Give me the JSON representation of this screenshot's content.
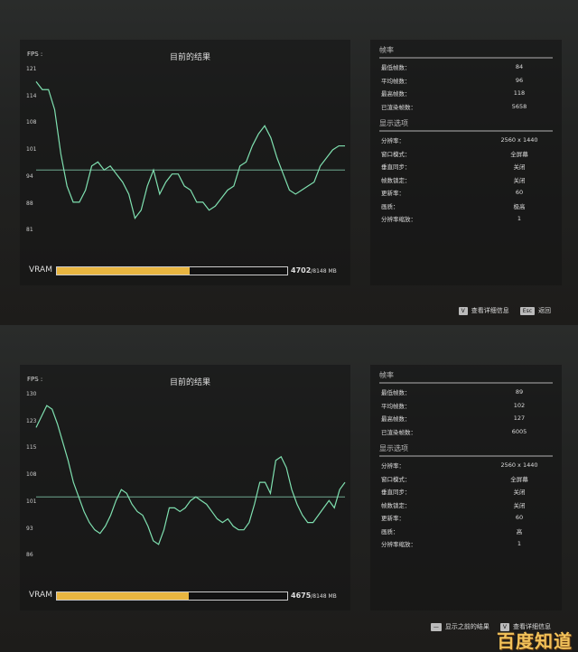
{
  "panels": [
    {
      "fps_label": "FPS :",
      "title": "目前的结果",
      "yticks": [
        "121",
        "114",
        "108",
        "101",
        "94",
        "88",
        "81"
      ],
      "ylim": [
        81,
        121
      ],
      "average": 96,
      "series": [
        118,
        116,
        116,
        111,
        100,
        92,
        88,
        88,
        91,
        97,
        98,
        96,
        97,
        95,
        93,
        90,
        84,
        86,
        92,
        96,
        90,
        93,
        95,
        95,
        92,
        91,
        88,
        88,
        86,
        87,
        89,
        91,
        92,
        97,
        98,
        102,
        105,
        107,
        104,
        99,
        95,
        91,
        90,
        91,
        92,
        93,
        97,
        99,
        101,
        102,
        102
      ],
      "vram": {
        "label": "VRAM",
        "used": "4702",
        "total": "/8148 MB",
        "fraction": 0.577
      },
      "stats": {
        "heading": "帧率",
        "rows": [
          {
            "label": "最低帧数：",
            "value": "84"
          },
          {
            "label": "平均帧数：",
            "value": "96"
          },
          {
            "label": "最高帧数：",
            "value": "118"
          },
          {
            "label": "已渲染帧数：",
            "value": "5658"
          }
        ]
      },
      "display": {
        "heading": "显示选项",
        "rows": [
          {
            "label": "分辨率：",
            "value": "2560 x 1440"
          },
          {
            "label": "窗口模式：",
            "value": "全屏幕"
          },
          {
            "label": "垂直同步：",
            "value": "关闭"
          },
          {
            "label": "帧数锁定：",
            "value": "关闭"
          },
          {
            "label": "更新率：",
            "value": "60"
          },
          {
            "label": "画质：",
            "value": "极高"
          },
          {
            "label": "分辨率缩放：",
            "value": "1"
          }
        ]
      },
      "footer": [
        {
          "key": "V",
          "label": "查看详细信息"
        },
        {
          "key": "Esc",
          "label": "返回"
        }
      ]
    },
    {
      "fps_label": "FPS :",
      "title": "目前的结果",
      "yticks": [
        "130",
        "123",
        "115",
        "108",
        "101",
        "93",
        "86"
      ],
      "ylim": [
        86,
        130
      ],
      "average": 102,
      "series": [
        121,
        124,
        127,
        126,
        122,
        117,
        112,
        106,
        102,
        98,
        95,
        93,
        92,
        94,
        97,
        101,
        104,
        103,
        100,
        98,
        97,
        94,
        90,
        89,
        93,
        99,
        99,
        98,
        99,
        101,
        102,
        101,
        100,
        98,
        96,
        95,
        96,
        94,
        93,
        93,
        95,
        100,
        106,
        106,
        103,
        112,
        113,
        110,
        104,
        100,
        97,
        95,
        95,
        97,
        99,
        101,
        99,
        104,
        106
      ],
      "vram": {
        "label": "VRAM",
        "used": "4675",
        "total": "/8148 MB",
        "fraction": 0.574
      },
      "stats": {
        "heading": "帧率",
        "rows": [
          {
            "label": "最低帧数：",
            "value": "89"
          },
          {
            "label": "平均帧数：",
            "value": "102"
          },
          {
            "label": "最高帧数：",
            "value": "127"
          },
          {
            "label": "已渲染帧数：",
            "value": "6005"
          }
        ]
      },
      "display": {
        "heading": "显示选项",
        "rows": [
          {
            "label": "分辨率：",
            "value": "2560 x 1440"
          },
          {
            "label": "窗口模式：",
            "value": "全屏幕"
          },
          {
            "label": "垂直同步：",
            "value": "关闭"
          },
          {
            "label": "帧数锁定：",
            "value": "关闭"
          },
          {
            "label": "更新率：",
            "value": "60"
          },
          {
            "label": "画质：",
            "value": "高"
          },
          {
            "label": "分辨率缩放：",
            "value": "1"
          }
        ]
      },
      "footer": [
        {
          "key": "—",
          "label": "显示之前的结果"
        },
        {
          "key": "V",
          "label": "查看详细信息"
        }
      ]
    }
  ],
  "watermark": "百度知道",
  "colors": {
    "line": "#7fe0b0",
    "average": "#6fa890",
    "vram": "#e8b540"
  }
}
